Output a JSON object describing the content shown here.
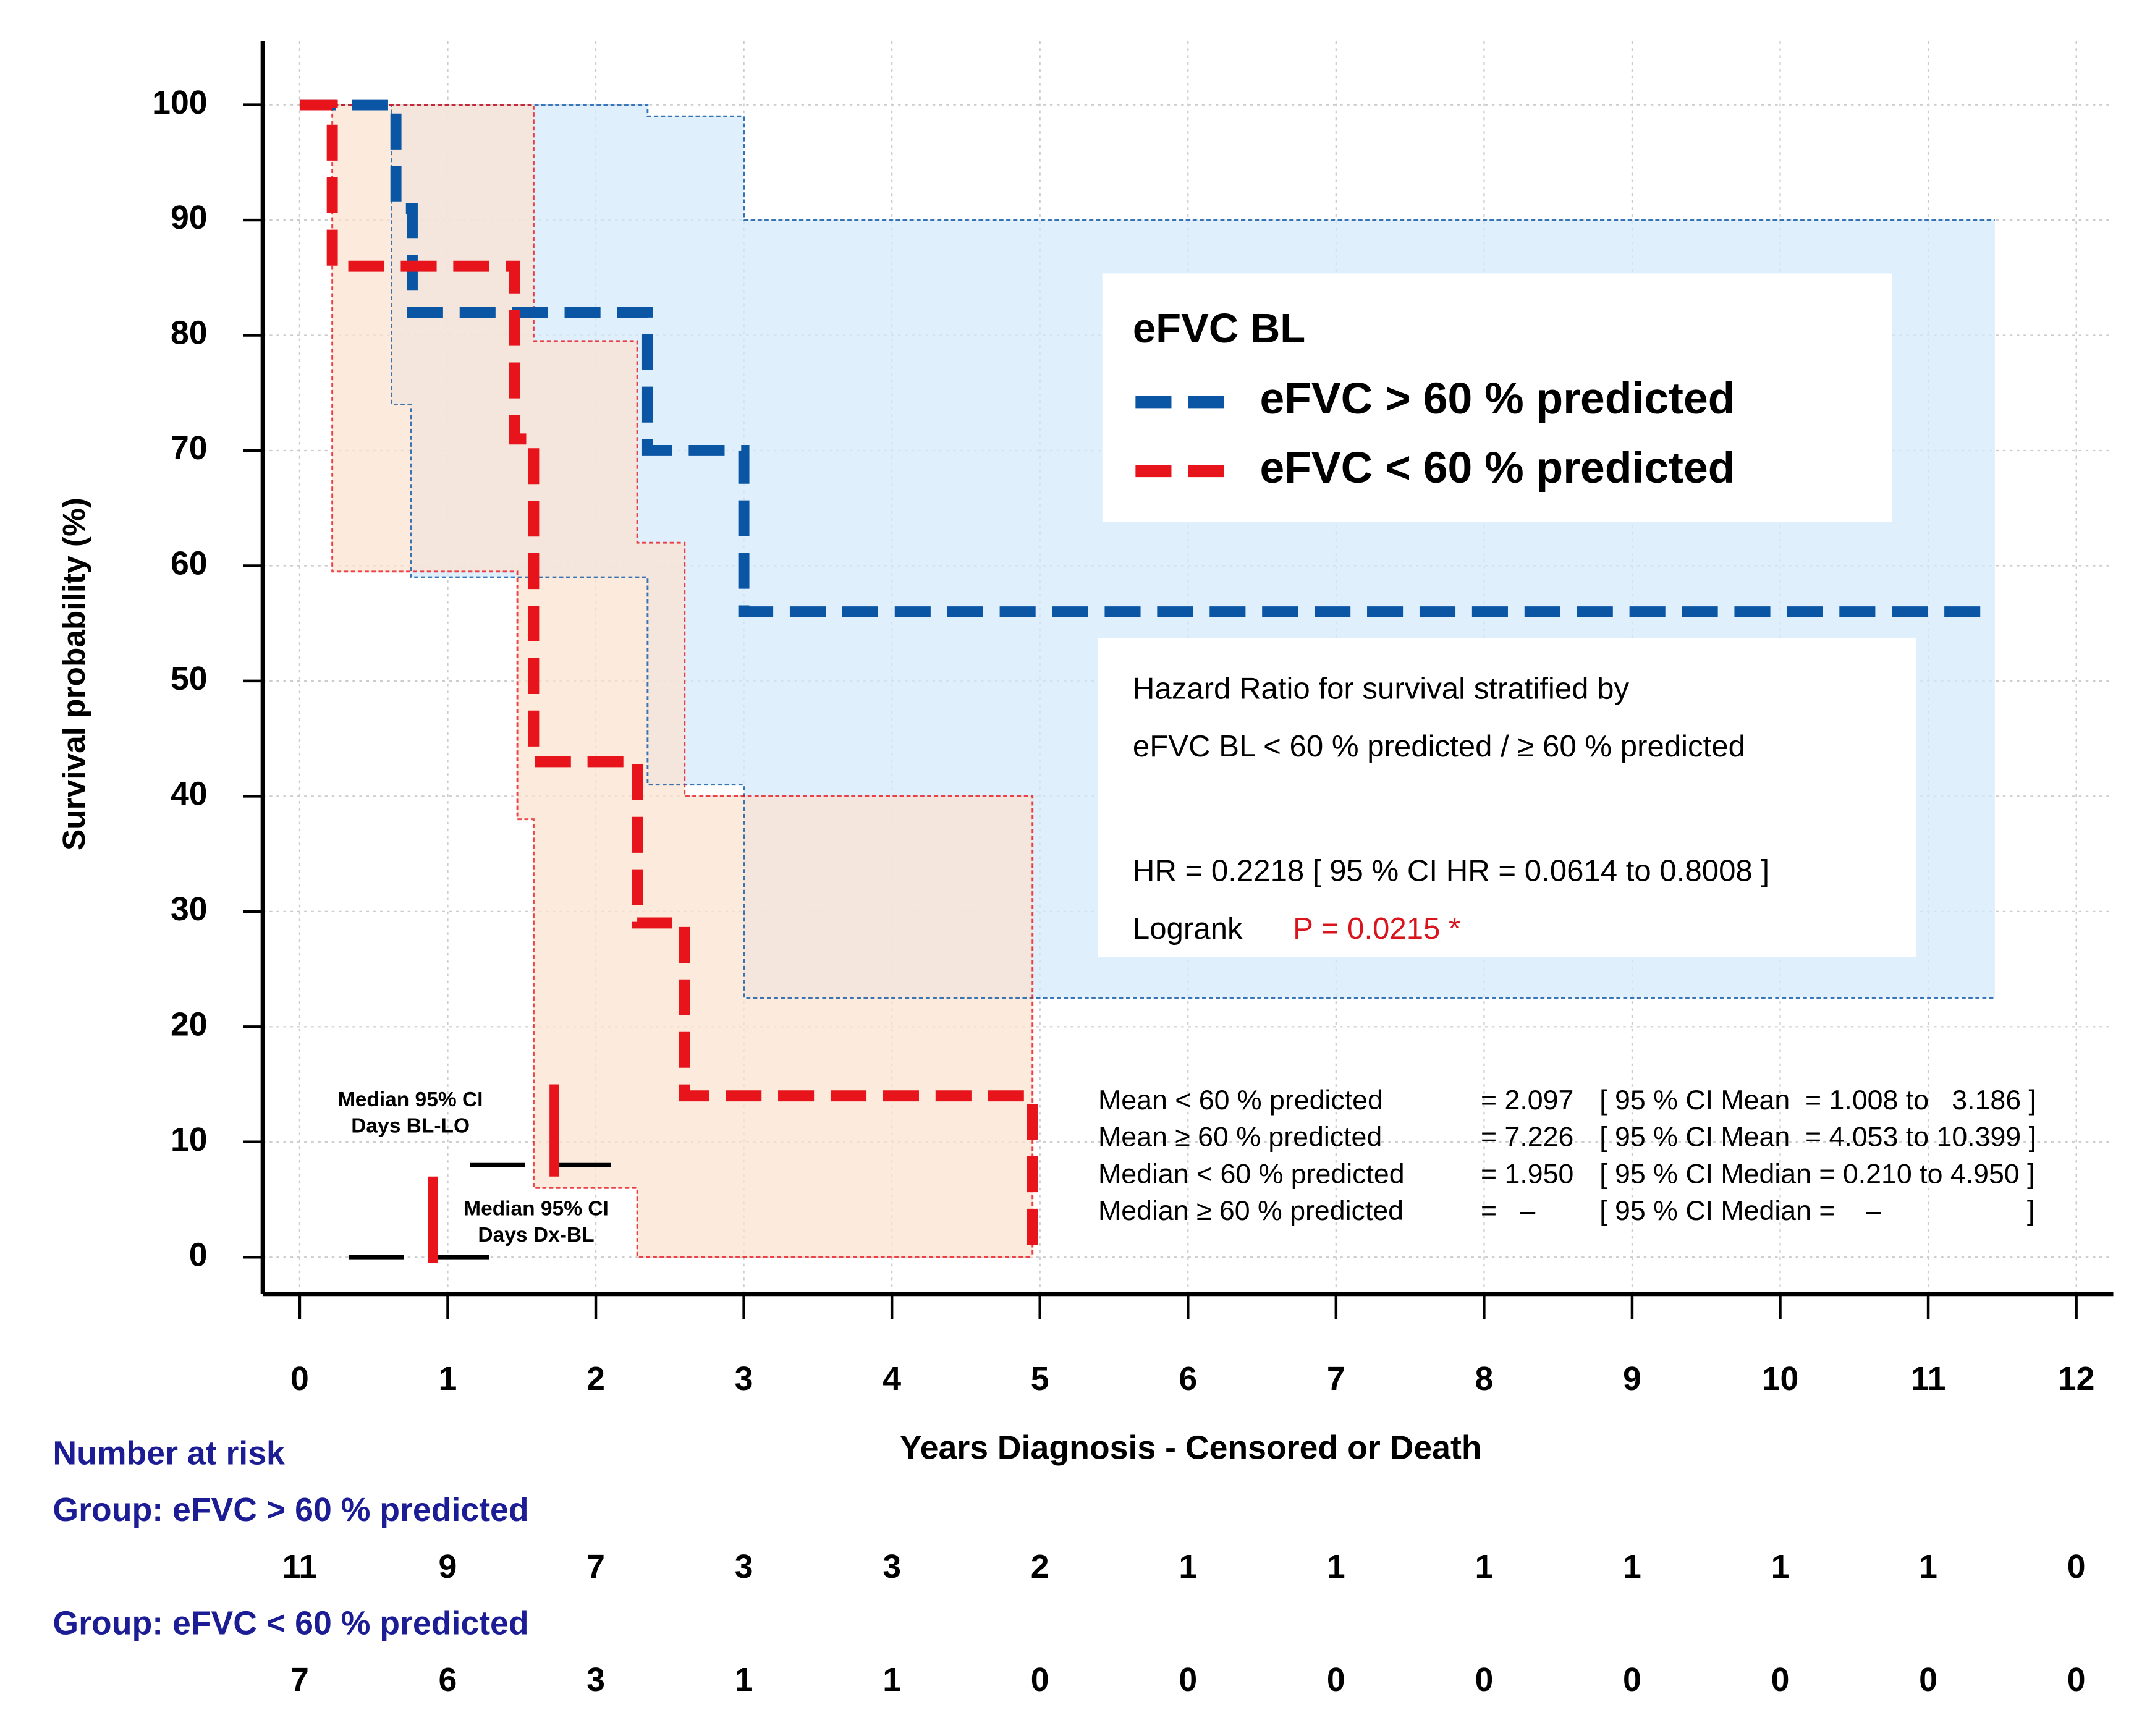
{
  "chart_data": {
    "type": "survival",
    "x_label": "Years Diagnosis - Censored or Death",
    "y_label": "Survival probability (%)",
    "xlim": [
      -0.25,
      12.25
    ],
    "ylim": [
      -3.2,
      105.5
    ],
    "xticks": [
      0,
      1,
      2,
      3,
      4,
      5,
      6,
      7,
      8,
      9,
      10,
      11,
      12
    ],
    "yticks": [
      0,
      10,
      20,
      30,
      40,
      50,
      60,
      70,
      80,
      90,
      100
    ],
    "grid": true,
    "legend": {
      "title": "eFVC  BL",
      "position": "upper right"
    },
    "series": [
      {
        "name": "eFVC > 60 % predicted",
        "color": "#0a56a5",
        "band_color": "#d6eafb",
        "x": [
          0,
          0.65,
          0.76,
          2.35,
          3.0,
          11.45
        ],
        "y": [
          100,
          91,
          82,
          70,
          56,
          56
        ],
        "ci_x": [
          0,
          0.62,
          0.75,
          2.35,
          3.0,
          11.45
        ],
        "ci_upper": [
          100,
          100,
          100,
          99,
          90,
          90
        ],
        "ci_lower": [
          100,
          74,
          59,
          41,
          22.5,
          22.5
        ]
      },
      {
        "name": "eFVC <  60 % predicted",
        "color": "#e8141c",
        "band_color": "#fbe3d2",
        "x": [
          0,
          0.22,
          1.45,
          1.58,
          2.28,
          2.6,
          4.95
        ],
        "y": [
          100,
          86,
          71,
          43,
          29,
          14,
          0
        ],
        "ci_x": [
          0,
          0.22,
          1.47,
          1.58,
          2.28,
          2.6,
          4.95
        ],
        "ci_upper": [
          100,
          100,
          100,
          79.5,
          62,
          40,
          0
        ],
        "ci_lower": [
          100,
          59.5,
          38,
          6,
          0,
          0,
          0
        ]
      }
    ],
    "hazard_box": {
      "lines": [
        "Hazard Ratio for survival stratified by",
        "eFVC BL < 60 % predicted  /  ≥ 60 % predicted",
        "HR = 0.2218  [ 95 % CI HR = 0.0614 to 0.8008 ]"
      ],
      "logrank_label": "Logrank",
      "p_value": "P = 0.0215 *"
    },
    "stats": [
      [
        "Mean < 60 % predicted",
        "= 2.097",
        "[ 95 % CI Mean  = 1.008 to   3.186 ]"
      ],
      [
        "Mean ≥ 60 % predicted",
        "= 7.226",
        "[ 95 % CI Mean  = 4.053 to 10.399 ]"
      ],
      [
        "Median < 60 % predicted",
        "= 1.950",
        "[ 95 % CI Median = 0.210 to 4.950 ]"
      ],
      [
        "Median ≥ 60 % predicted",
        "=   –",
        "[ 95 % CI Median =    –                   ]"
      ]
    ],
    "median_ci": [
      {
        "label": [
          "Median 95% CI",
          "Days BL-LO"
        ],
        "ci": [
          1.15,
          2.3
        ],
        "y": 8,
        "median": 1.72,
        "bar": [
          7,
          15
        ]
      },
      {
        "label": [
          "Median 95% CI",
          "Days Dx-BL"
        ],
        "ci": [
          0.33,
          1.3
        ],
        "y": 0,
        "median": 0.9,
        "bar": [
          -0.5,
          7
        ]
      }
    ],
    "number_at_risk": {
      "title": "Number at risk",
      "groups": [
        {
          "name": "Group: eFVC > 60 % predicted",
          "counts": [
            11,
            9,
            7,
            3,
            3,
            2,
            1,
            1,
            1,
            1,
            1,
            1,
            0
          ]
        },
        {
          "name": "Group: eFVC <  60 % predicted",
          "counts": [
            7,
            6,
            3,
            1,
            1,
            0,
            0,
            0,
            0,
            0,
            0,
            0,
            0
          ]
        }
      ]
    }
  }
}
